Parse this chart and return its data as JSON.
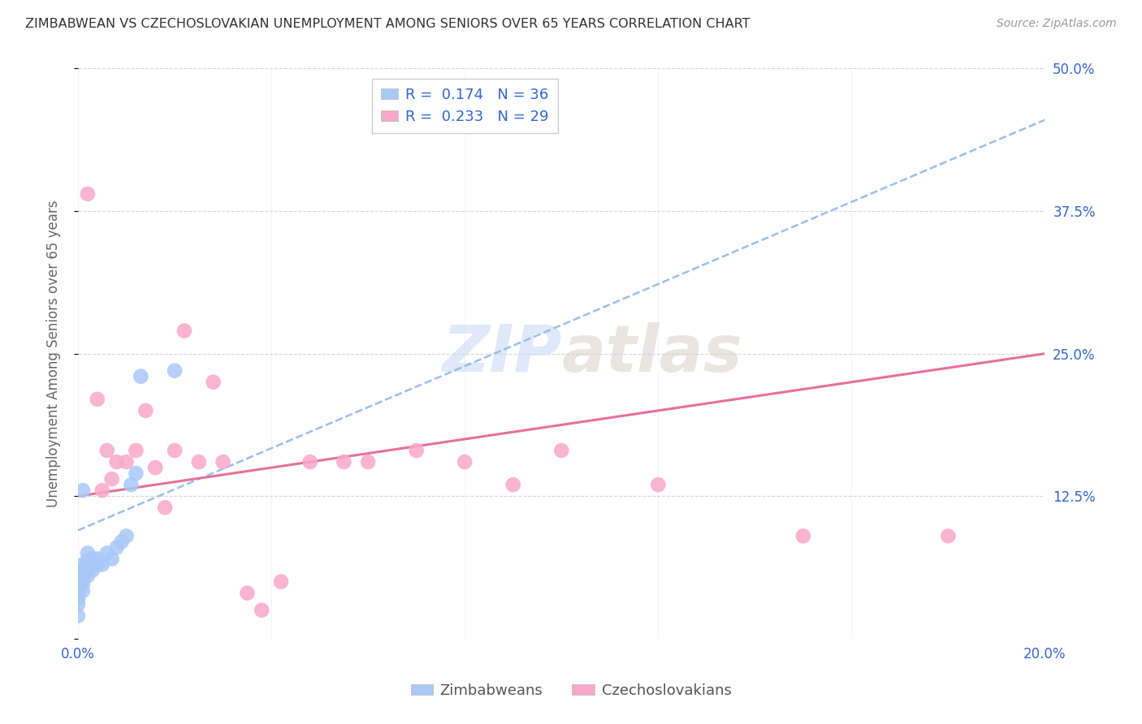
{
  "title": "ZIMBABWEAN VS CZECHOSLOVAKIAN UNEMPLOYMENT AMONG SENIORS OVER 65 YEARS CORRELATION CHART",
  "source": "Source: ZipAtlas.com",
  "ylabel": "Unemployment Among Seniors over 65 years",
  "xlim": [
    0.0,
    0.2
  ],
  "ylim": [
    0.0,
    0.5
  ],
  "xtick_positions": [
    0.0,
    0.04,
    0.08,
    0.12,
    0.16,
    0.2
  ],
  "ytick_positions": [
    0.0,
    0.125,
    0.25,
    0.375,
    0.5
  ],
  "xticklabels": [
    "0.0%",
    "",
    "",
    "",
    "",
    "20.0%"
  ],
  "yticklabels_right": [
    "",
    "12.5%",
    "25.0%",
    "37.5%",
    "50.0%"
  ],
  "legend_label1": "Zimbabweans",
  "legend_label2": "Czechoslovakians",
  "R1": 0.174,
  "N1": 36,
  "R2": 0.233,
  "N2": 29,
  "color1": "#a8c8f8",
  "color2": "#f8a8c8",
  "trendline1_color": "#90b8e8",
  "trendline2_color": "#e8709a",
  "background_color": "#ffffff",
  "watermark_zip": "ZIP",
  "watermark_atlas": "atlas",
  "zim_x": [
    0.0,
    0.0,
    0.0,
    0.0,
    0.0,
    0.0,
    0.0,
    0.0,
    0.001,
    0.001,
    0.001,
    0.001,
    0.001,
    0.001,
    0.001,
    0.001,
    0.002,
    0.002,
    0.002,
    0.002,
    0.002,
    0.003,
    0.003,
    0.003,
    0.004,
    0.004,
    0.005,
    0.006,
    0.007,
    0.008,
    0.009,
    0.01,
    0.011,
    0.012,
    0.013,
    0.02
  ],
  "zim_y": [
    0.02,
    0.03,
    0.035,
    0.038,
    0.04,
    0.042,
    0.045,
    0.05,
    0.042,
    0.048,
    0.052,
    0.055,
    0.058,
    0.06,
    0.065,
    0.13,
    0.055,
    0.06,
    0.065,
    0.068,
    0.075,
    0.06,
    0.065,
    0.07,
    0.065,
    0.07,
    0.065,
    0.075,
    0.07,
    0.08,
    0.085,
    0.09,
    0.135,
    0.145,
    0.23,
    0.235
  ],
  "cz_x": [
    0.002,
    0.004,
    0.005,
    0.006,
    0.007,
    0.008,
    0.01,
    0.012,
    0.014,
    0.016,
    0.018,
    0.02,
    0.022,
    0.025,
    0.028,
    0.03,
    0.035,
    0.038,
    0.042,
    0.048,
    0.055,
    0.06,
    0.07,
    0.08,
    0.09,
    0.1,
    0.12,
    0.15,
    0.18
  ],
  "cz_y": [
    0.39,
    0.21,
    0.13,
    0.165,
    0.14,
    0.155,
    0.155,
    0.165,
    0.2,
    0.15,
    0.115,
    0.165,
    0.27,
    0.155,
    0.225,
    0.155,
    0.04,
    0.025,
    0.05,
    0.155,
    0.155,
    0.155,
    0.165,
    0.155,
    0.135,
    0.165,
    0.135,
    0.09,
    0.09
  ],
  "trendline1_x": [
    0.0,
    0.2
  ],
  "trendline1_y": [
    0.095,
    0.455
  ],
  "trendline2_x": [
    0.0,
    0.2
  ],
  "trendline2_y": [
    0.125,
    0.25
  ]
}
